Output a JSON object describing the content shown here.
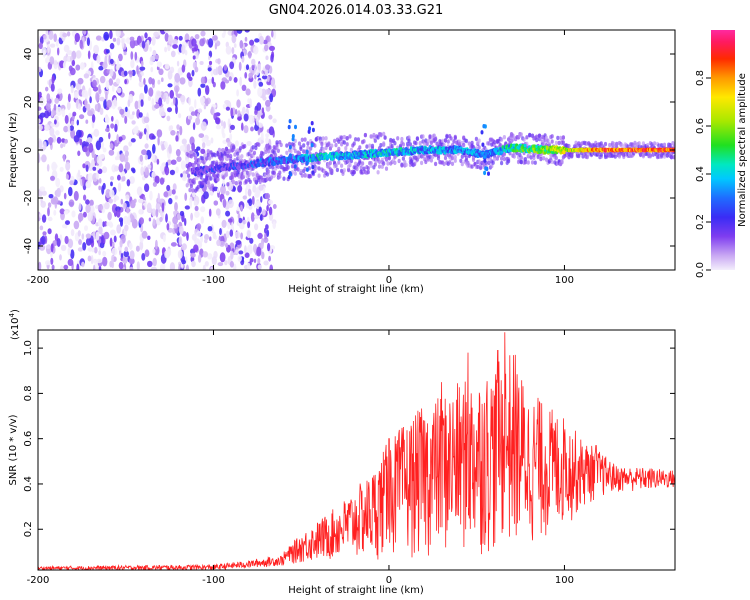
{
  "title": "GN04.2026.014.03.33.G21",
  "colors": {
    "red": "#ff2020",
    "axis": "#000000"
  },
  "chart_data": [
    {
      "type": "heatmap",
      "title": "GN04.2026.014.03.33.G21",
      "xlabel": "Height of straight line (km)",
      "ylabel": "Frequency (Hz)",
      "xlim": [
        -200,
        163
      ],
      "ylim": [
        -50,
        50
      ],
      "x_ticks": [
        -200,
        -100,
        0,
        100
      ],
      "x_tick_labels": [
        "-200",
        "-100",
        "0",
        "100"
      ],
      "y_ticks": [
        -40,
        -20,
        0,
        20,
        40
      ],
      "y_tick_labels": [
        "-40",
        "-20",
        "0",
        "20",
        "40"
      ],
      "colorbar": {
        "label": "Normalized spectral amplitude",
        "range": [
          0,
          1
        ],
        "ticks": [
          0,
          0.2,
          0.4,
          0.6,
          0.8
        ],
        "tick_labels": [
          "0.0",
          "0.2",
          "0.4",
          "0.6",
          "0.8"
        ]
      },
      "noise_region_x": [
        -200,
        -65
      ],
      "signal_track": [
        {
          "x": -110,
          "f": -9,
          "a": 0.25
        },
        {
          "x": -90,
          "f": -7,
          "a": 0.3
        },
        {
          "x": -70,
          "f": -5,
          "a": 0.35
        },
        {
          "x": -55,
          "f": -4,
          "a": 0.4
        },
        {
          "x": -40,
          "f": -3,
          "a": 0.5
        },
        {
          "x": -20,
          "f": -2,
          "a": 0.45
        },
        {
          "x": 0,
          "f": -1,
          "a": 0.5
        },
        {
          "x": 20,
          "f": 0,
          "a": 0.45
        },
        {
          "x": 40,
          "f": 0,
          "a": 0.45
        },
        {
          "x": 55,
          "f": -2,
          "a": 0.4
        },
        {
          "x": 70,
          "f": 1,
          "a": 0.55
        },
        {
          "x": 90,
          "f": 0,
          "a": 0.7
        },
        {
          "x": 110,
          "f": 0,
          "a": 0.85
        },
        {
          "x": 125,
          "f": 0,
          "a": 0.95
        },
        {
          "x": 163,
          "f": 0,
          "a": 0.98
        }
      ]
    },
    {
      "type": "line",
      "xlabel": "Height of straight line (km)",
      "ylabel": "SNR (10 * v/v)",
      "y_scale_label": "(x10",
      "y_scale_exp": "4",
      "y_scale_suffix": ")",
      "xlim": [
        -200,
        163
      ],
      "ylim": [
        0.02,
        1.08
      ],
      "x_ticks": [
        -200,
        -100,
        0,
        100
      ],
      "x_tick_labels": [
        "-200",
        "-100",
        "0",
        "100"
      ],
      "y_ticks": [
        0.2,
        0.4,
        0.6,
        0.8,
        1.0
      ],
      "y_tick_labels": [
        "0.2",
        "0.4",
        "0.6",
        "0.8",
        "1.0"
      ],
      "series": [
        {
          "name": "SNR",
          "color": "#ff2020",
          "envelope_x": [
            -200,
            -100,
            -80,
            -60,
            -50,
            -30,
            -10,
            0,
            20,
            40,
            60,
            70,
            80,
            90,
            100,
            110,
            118,
            130,
            150,
            163
          ],
          "envelope_upper": [
            0.04,
            0.05,
            0.07,
            0.1,
            0.18,
            0.3,
            0.45,
            0.6,
            0.75,
            0.85,
            0.92,
            1.0,
            0.8,
            0.75,
            0.7,
            0.6,
            0.56,
            0.48,
            0.47,
            0.46
          ],
          "envelope_lower": [
            0.02,
            0.02,
            0.03,
            0.04,
            0.05,
            0.06,
            0.06,
            0.07,
            0.07,
            0.08,
            0.08,
            0.1,
            0.12,
            0.15,
            0.2,
            0.28,
            0.33,
            0.36,
            0.37,
            0.38
          ],
          "peaks": [
            {
              "x": 0,
              "y": 0.6
            },
            {
              "x": 30,
              "y": 0.85
            },
            {
              "x": 45,
              "y": 0.98
            },
            {
              "x": 62,
              "y": 0.99
            },
            {
              "x": 66,
              "y": 1.07
            },
            {
              "x": 72,
              "y": 0.97
            },
            {
              "x": 85,
              "y": 0.78
            },
            {
              "x": 100,
              "y": 0.62
            },
            {
              "x": 118,
              "y": 0.57
            }
          ]
        }
      ]
    }
  ]
}
